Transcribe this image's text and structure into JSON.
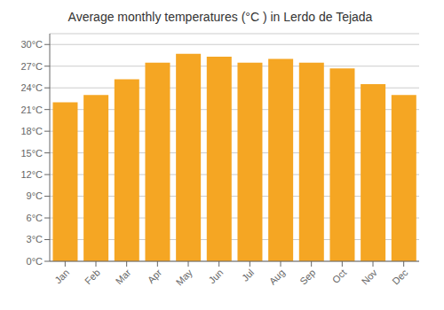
{
  "chart_data": {
    "type": "bar",
    "title": "Average monthly temperatures (°C ) in Lerdo de Tejada",
    "categories": [
      "Jan",
      "Feb",
      "Mar",
      "Apr",
      "May",
      "Jun",
      "Jul",
      "Aug",
      "Sep",
      "Oct",
      "Nov",
      "Dec"
    ],
    "values": [
      22.0,
      23.0,
      25.2,
      27.5,
      28.7,
      28.3,
      27.5,
      28.0,
      27.5,
      26.7,
      24.5,
      23.0
    ],
    "color": "#F5A623",
    "ylim": [
      0,
      31.5
    ],
    "yticks": [
      {
        "value": 0,
        "label": "0°C"
      },
      {
        "value": 3,
        "label": "3°C"
      },
      {
        "value": 6,
        "label": "6°C"
      },
      {
        "value": 9,
        "label": "9°C"
      },
      {
        "value": 12,
        "label": "12°C"
      },
      {
        "value": 15,
        "label": "15°C"
      },
      {
        "value": 18,
        "label": "18°C"
      },
      {
        "value": 21,
        "label": "21°C"
      },
      {
        "value": 24,
        "label": "24°C"
      },
      {
        "value": 27,
        "label": "27°C"
      },
      {
        "value": 30,
        "label": "30°C"
      }
    ],
    "grid": true
  }
}
